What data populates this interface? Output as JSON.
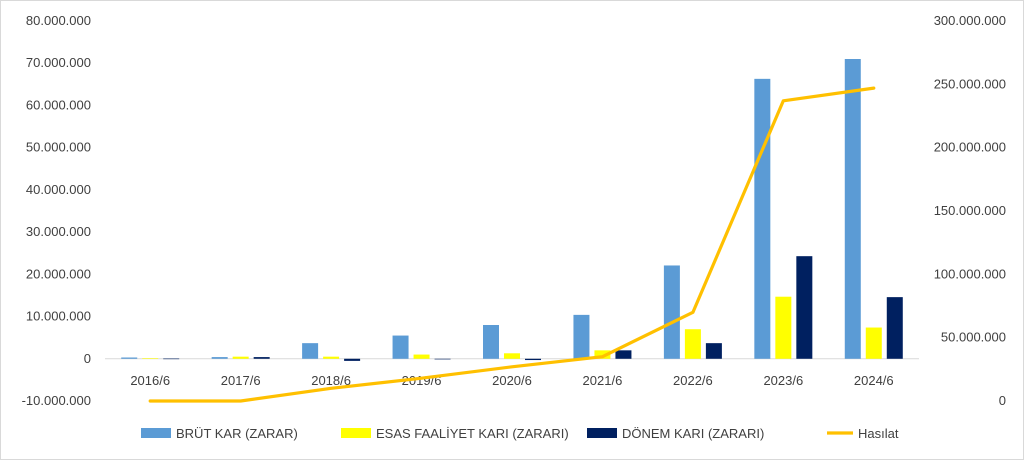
{
  "chart_data": {
    "type": "bar",
    "categories": [
      "2016/6",
      "2017/6",
      "2018/6",
      "2019/6",
      "2020/6",
      "2021/6",
      "2022/6",
      "2023/6",
      "2024/6"
    ],
    "series": [
      {
        "name": "BRÜT KAR (ZARAR)",
        "type": "bar",
        "axis": "left",
        "color": "#5b9bd5",
        "values": [
          300000,
          400000,
          3700000,
          5500000,
          8000000,
          10400000,
          22100000,
          66300000,
          71000000
        ]
      },
      {
        "name": "ESAS FAALİYET KARI (ZARARI)",
        "type": "bar",
        "axis": "left",
        "color": "#ffff00",
        "values": [
          100000,
          500000,
          500000,
          1000000,
          1300000,
          2000000,
          7000000,
          14700000,
          7400000
        ]
      },
      {
        "name": "DÖNEM KARI (ZARARI)",
        "type": "bar",
        "axis": "left",
        "color": "#002060",
        "values": [
          50000,
          400000,
          -500000,
          0,
          -300000,
          2000000,
          3700000,
          24300000,
          14600000
        ]
      },
      {
        "name": "Hasılat",
        "type": "line",
        "axis": "right",
        "color": "#ffc000",
        "values": [
          0,
          0,
          10000000,
          18000000,
          27000000,
          35000000,
          70000000,
          237000000,
          247000000
        ]
      }
    ],
    "y_left": {
      "min": -10000000,
      "max": 80000000,
      "ticks": [
        -10000000,
        0,
        10000000,
        20000000,
        30000000,
        40000000,
        50000000,
        60000000,
        70000000,
        80000000
      ],
      "tick_labels": [
        "-10.000.000",
        "0",
        "10.000.000",
        "20.000.000",
        "30.000.000",
        "40.000.000",
        "50.000.000",
        "60.000.000",
        "70.000.000",
        "80.000.000"
      ]
    },
    "y_right": {
      "min": 0,
      "max": 300000000,
      "ticks": [
        0,
        50000000,
        100000000,
        150000000,
        200000000,
        250000000,
        300000000
      ],
      "tick_labels": [
        "0",
        "50.000.000",
        "100.000.000",
        "150.000.000",
        "200.000.000",
        "250.000.000",
        "300.000.000"
      ]
    },
    "grid": false,
    "legend_position": "bottom"
  }
}
